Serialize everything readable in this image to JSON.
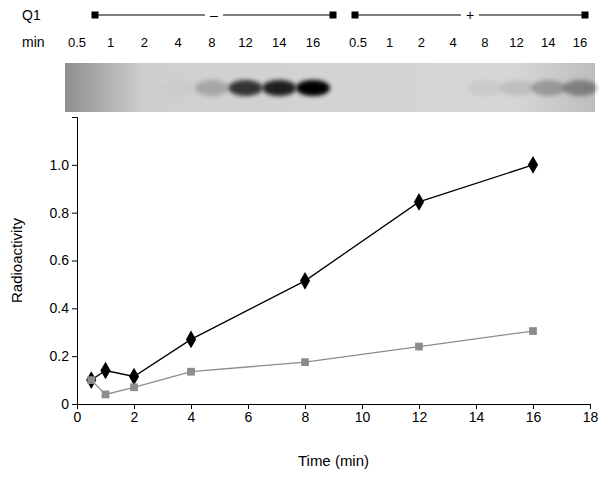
{
  "chart_data": {
    "type": "line",
    "x_label": "Time (min)",
    "y_label": "Radioactivity",
    "xlim": [
      0,
      18
    ],
    "xticks": [
      0,
      2,
      4,
      6,
      8,
      10,
      12,
      14,
      16,
      18
    ],
    "ylim": [
      0,
      1.2
    ],
    "yticks": [
      0,
      0.2,
      0.4,
      0.6,
      0.8,
      {
        "value": 1,
        "label": "1.0"
      }
    ],
    "grid": false,
    "x": [
      0.5,
      1,
      2,
      4,
      8,
      12,
      16
    ],
    "series": [
      {
        "color": "#000000",
        "marker": "diamond",
        "line_style": "solid",
        "values": [
          0.1,
          0.14,
          0.115,
          0.27,
          0.515,
          0.845,
          1.0
        ]
      },
      {
        "color": "#8c8c8c",
        "marker": "square",
        "line_style": "solid",
        "values": [
          0.1,
          0.04,
          0.07,
          0.135,
          0.175,
          0.24,
          0.305
        ]
      }
    ]
  },
  "gel": {
    "row_label": "Q1",
    "lane_label": "min",
    "groups": [
      {
        "label": "–",
        "lanes": [
          0.5,
          1,
          2,
          4,
          8,
          12,
          14,
          16
        ],
        "intensity": [
          0,
          0,
          0,
          0.02,
          0.2,
          0.75,
          0.85,
          1.0
        ]
      },
      {
        "label": "+",
        "lanes": [
          0.5,
          1,
          2,
          4,
          8,
          12,
          14,
          16
        ],
        "intensity": [
          0,
          0,
          0,
          0,
          0.05,
          0.1,
          0.25,
          0.35
        ]
      }
    ]
  }
}
